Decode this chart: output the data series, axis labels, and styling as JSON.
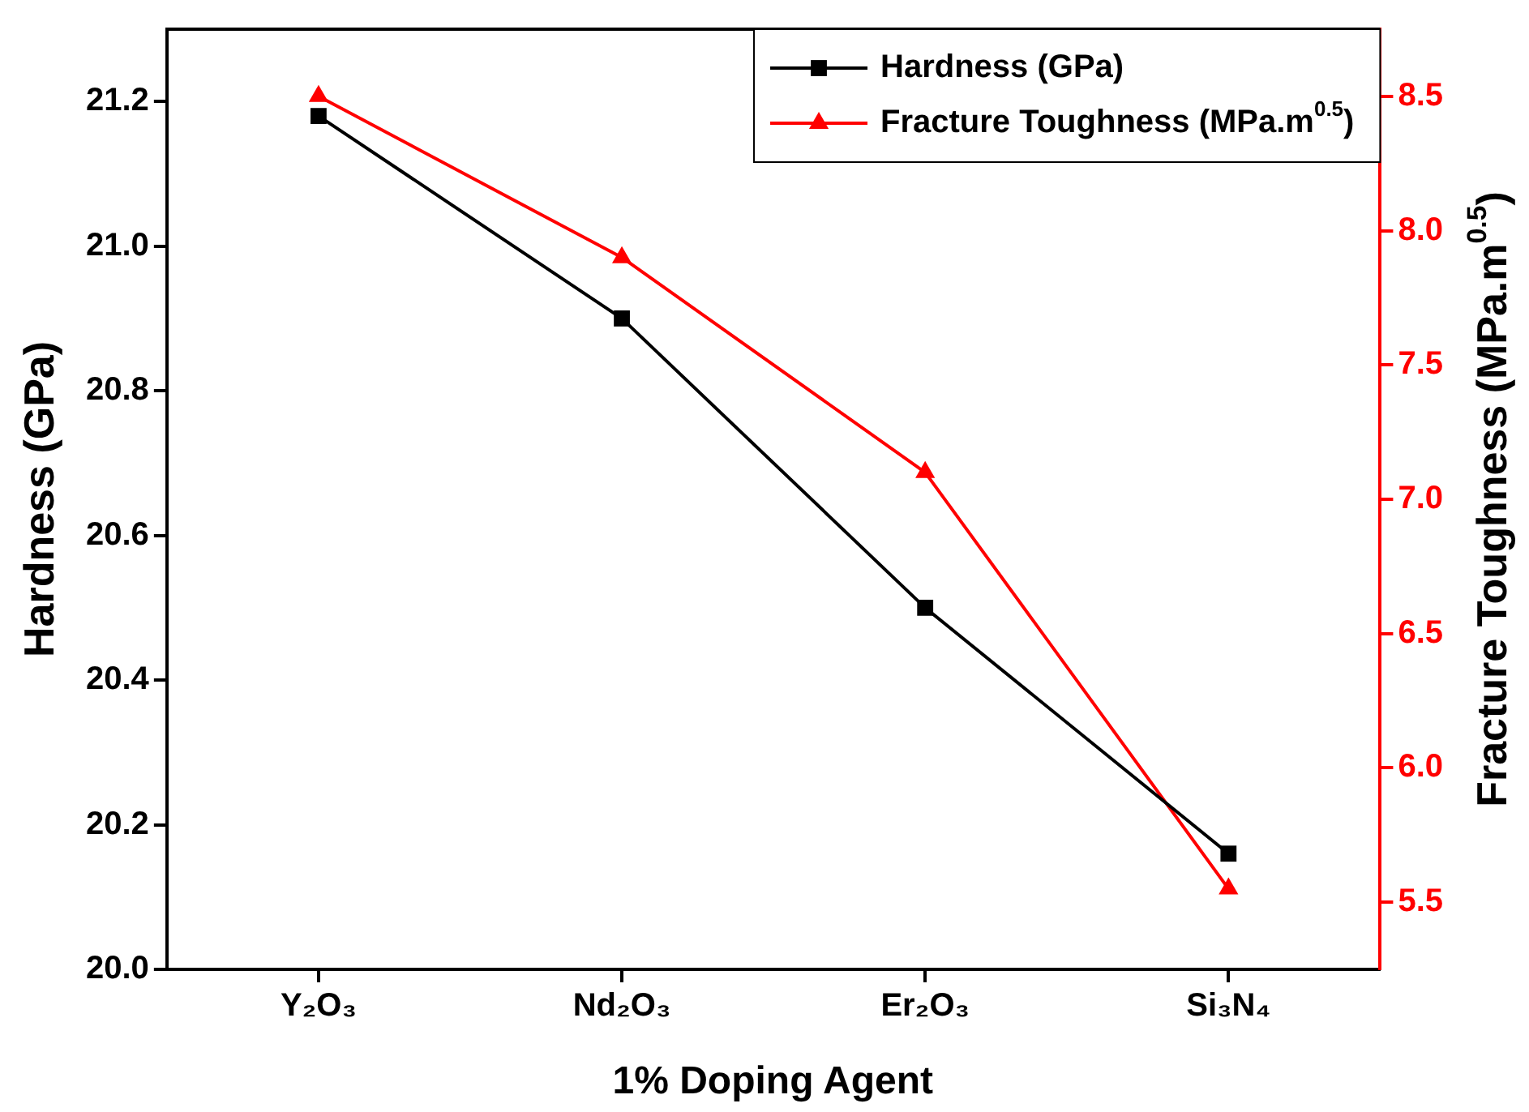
{
  "chart_data": {
    "type": "line",
    "xlabel": "1% Doping Agent",
    "ylabel": "Hardness (GPa)",
    "y2label": "Fracture Toughness (MPa.m$^{0.5}$)",
    "categories": [
      "Y₂O₃",
      "Nd₂O₃",
      "Er₂O₃",
      "Si₃N₄"
    ],
    "series": [
      {
        "name": "Hardness (GPa)",
        "color": "#000000",
        "marker": "square",
        "values": [
          21.18,
          20.9,
          20.5,
          20.16
        ]
      },
      {
        "name": "Fracture Toughness (MPa.m$^{0.5}$)",
        "color": "#ff0000",
        "marker": "triangle",
        "axis": "y2",
        "values": [
          8.5,
          7.9,
          7.1,
          5.55
        ]
      }
    ],
    "ylim": [
      20.0,
      21.3
    ],
    "yticks": [
      {
        "value": 20.0,
        "label": "20.0"
      },
      {
        "value": 20.2,
        "label": "20.2"
      },
      {
        "value": 20.4,
        "label": "20.4"
      },
      {
        "value": 20.6,
        "label": "20.6"
      },
      {
        "value": 20.8,
        "label": "20.8"
      },
      {
        "value": 21.0,
        "label": "21.0"
      },
      {
        "value": 21.2,
        "label": "21.2"
      }
    ],
    "y2lim": [
      5.25,
      8.75
    ],
    "y2ticks": [
      5.5,
      {
        "value": 6.0,
        "label": "6.0"
      },
      6.5,
      {
        "value": 7.0,
        "label": "7.0"
      },
      7.5,
      {
        "value": 8.0,
        "label": "8.0"
      },
      8.5
    ],
    "grid": false,
    "legend": "top right"
  }
}
